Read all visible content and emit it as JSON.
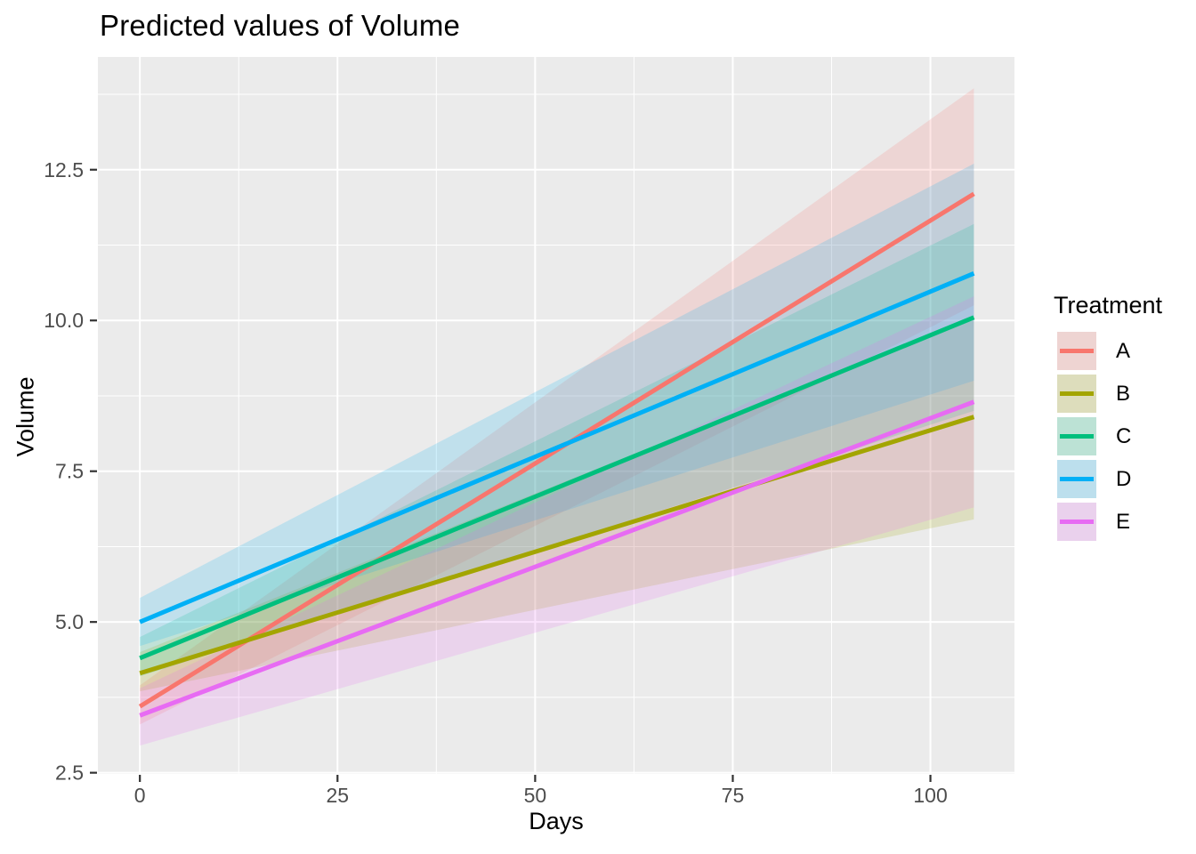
{
  "title": "Predicted values of Volume",
  "axes": {
    "x": {
      "label": "Days",
      "tick_labels": [
        "0",
        "25",
        "50",
        "75",
        "100"
      ],
      "tick_values": [
        0,
        25,
        50,
        75,
        100
      ],
      "minor_values": [
        12.5,
        37.5,
        62.5,
        87.5
      ],
      "domain": [
        -5.31,
        110.63
      ]
    },
    "y": {
      "label": "Volume",
      "tick_labels": [
        "2.5",
        "5.0",
        "7.5",
        "10.0",
        "12.5"
      ],
      "tick_values": [
        2.5,
        5.0,
        7.5,
        10.0,
        12.5
      ],
      "minor_values": [
        3.75,
        6.25,
        8.75,
        11.25,
        13.75
      ],
      "domain": [
        2.48,
        14.37
      ]
    }
  },
  "legend": {
    "title": "Treatment",
    "entries": [
      {
        "label": "A",
        "color": "#F8766D"
      },
      {
        "label": "B",
        "color": "#A3A500"
      },
      {
        "label": "C",
        "color": "#00BF7D"
      },
      {
        "label": "D",
        "color": "#00B0F6"
      },
      {
        "label": "E",
        "color": "#E76BF3"
      }
    ]
  },
  "chart_data": {
    "type": "line",
    "title": "Predicted values of Volume",
    "xlabel": "Days",
    "ylabel": "Volume",
    "xlim": [
      -5.31,
      110.63
    ],
    "ylim": [
      2.48,
      14.37
    ],
    "grid": true,
    "legend_position": "right",
    "ribbon_alpha": 0.18,
    "x": [
      0,
      105.5
    ],
    "series": [
      {
        "name": "A",
        "color": "#F8766D",
        "values": [
          3.6,
          12.1
        ],
        "ci_lower": [
          3.3,
          10.25
        ],
        "ci_upper": [
          3.95,
          13.85
        ]
      },
      {
        "name": "B",
        "color": "#A3A500",
        "values": [
          4.15,
          8.4
        ],
        "ci_lower": [
          3.85,
          6.7
        ],
        "ci_upper": [
          4.5,
          10.05
        ]
      },
      {
        "name": "C",
        "color": "#00BF7D",
        "values": [
          4.4,
          10.05
        ],
        "ci_lower": [
          4.1,
          8.5
        ],
        "ci_upper": [
          4.75,
          11.6
        ]
      },
      {
        "name": "D",
        "color": "#00B0F6",
        "values": [
          5.0,
          10.78
        ],
        "ci_lower": [
          4.6,
          9.0
        ],
        "ci_upper": [
          5.4,
          12.6
        ]
      },
      {
        "name": "E",
        "color": "#E76BF3",
        "values": [
          3.45,
          8.65
        ],
        "ci_lower": [
          2.95,
          6.9
        ],
        "ci_upper": [
          3.9,
          10.4
        ]
      }
    ]
  },
  "colors": {
    "panel_bg": "#EBEBEB",
    "grid": "#FFFFFF",
    "tick_label": "#4D4D4D",
    "tick_mark": "#333333"
  }
}
